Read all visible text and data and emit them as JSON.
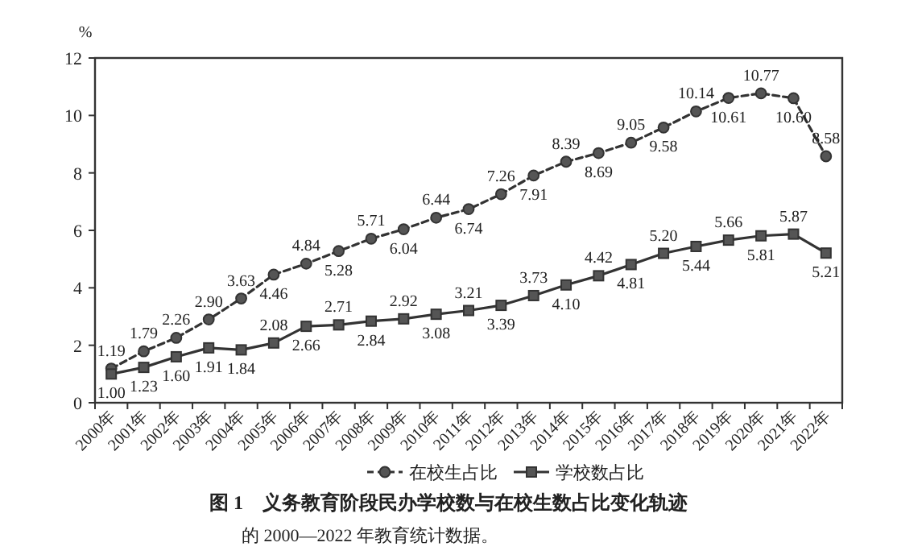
{
  "chart_data": {
    "type": "line",
    "title": "图 1　义务教育阶段民办学校数与在校生数占比变化轨迹",
    "ylabel": "%",
    "categories": [
      "2000年",
      "2001年",
      "2002年",
      "2003年",
      "2004年",
      "2005年",
      "2006年",
      "2007年",
      "2008年",
      "2009年",
      "2010年",
      "2011年",
      "2012年",
      "2013年",
      "2014年",
      "2015年",
      "2016年",
      "2017年",
      "2018年",
      "2019年",
      "2020年",
      "2021年",
      "2022年"
    ],
    "series": [
      {
        "name": "在校生占比",
        "color": "#333333",
        "marker": "circle",
        "line_style": "dashed",
        "value_labels": [
          "1.19",
          "1.79",
          "2.26",
          "2.90",
          "3.63",
          "4.46",
          "4.84",
          "5.28",
          "5.71",
          "6.04",
          "6.44",
          "6.74",
          "7.26",
          "7.91",
          "8.39",
          "8.69",
          "9.05",
          "9.58",
          "10.14",
          "10.61",
          "10.77",
          "10.60",
          "8.58"
        ],
        "values": [
          1.19,
          1.79,
          2.26,
          2.9,
          3.63,
          4.46,
          4.84,
          5.28,
          5.71,
          6.04,
          6.44,
          6.74,
          7.26,
          7.91,
          8.39,
          8.69,
          9.05,
          9.58,
          10.14,
          10.61,
          10.77,
          10.6,
          8.58
        ]
      },
      {
        "name": "学校数占比",
        "color": "#333333",
        "marker": "square",
        "line_style": "solid",
        "value_labels": [
          "1.00",
          "1.23",
          "1.60",
          "1.91",
          "1.84",
          "2.08",
          "2.66",
          "2.71",
          "2.84",
          "2.92",
          "3.08",
          "3.21",
          "3.39",
          "3.73",
          "4.10",
          "4.42",
          "4.81",
          "5.20",
          "5.44",
          "5.66",
          "5.81",
          "5.87",
          "5.21"
        ],
        "values": [
          1.0,
          1.23,
          1.6,
          1.91,
          1.84,
          2.08,
          2.66,
          2.71,
          2.84,
          2.92,
          3.08,
          3.21,
          3.39,
          3.73,
          4.1,
          4.42,
          4.81,
          5.2,
          5.44,
          5.66,
          5.81,
          5.87,
          5.21
        ]
      }
    ],
    "ylim": [
      0,
      12
    ],
    "yticks": [
      0,
      2,
      4,
      6,
      8,
      10,
      12
    ],
    "grid": false,
    "legend": "bottom",
    "annotations": [
      "的 2000—2022 年教育统计数据。"
    ]
  }
}
